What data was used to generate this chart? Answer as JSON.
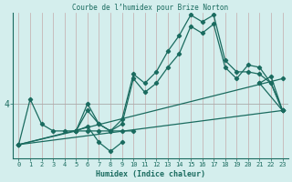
{
  "title": "Courbe de l’humidex pour Brize Norton",
  "xlabel": "Humidex (Indice chaleur)",
  "background_color": "#d4eeed",
  "line_color": "#1a6b5f",
  "grid_color_v": "#c4aaaa",
  "grid_color_h": "#aaaaaa",
  "ytick_label": "4",
  "ytick_val": 4.0,
  "xlim": [
    -0.5,
    23.5
  ],
  "ylim": [
    2.8,
    6.0
  ],
  "xticks": [
    0,
    1,
    2,
    3,
    4,
    5,
    6,
    7,
    8,
    9,
    10,
    11,
    12,
    13,
    14,
    15,
    16,
    17,
    18,
    19,
    20,
    21,
    22,
    23
  ],
  "series": [
    {
      "x": [
        0,
        1,
        2,
        3,
        4,
        5,
        6,
        7,
        8,
        9,
        10
      ],
      "y": [
        3.1,
        4.1,
        3.55,
        3.4,
        3.4,
        3.4,
        3.4,
        3.4,
        3.4,
        3.4,
        3.4
      ]
    },
    {
      "x": [
        0,
        5,
        6,
        7,
        8,
        9,
        10,
        11,
        12,
        13,
        14,
        15,
        16,
        17,
        18,
        19,
        20,
        21,
        22,
        23
      ],
      "y": [
        3.1,
        3.4,
        3.85,
        3.55,
        3.4,
        3.55,
        4.55,
        4.25,
        4.45,
        4.8,
        5.1,
        5.7,
        5.55,
        5.75,
        4.8,
        4.55,
        4.85,
        4.8,
        4.45,
        3.85
      ]
    },
    {
      "x": [
        5,
        6,
        7,
        8,
        9,
        10,
        11,
        12,
        13,
        14,
        15,
        16,
        17,
        18,
        19,
        20,
        21,
        22,
        23
      ],
      "y": [
        3.4,
        4.0,
        3.55,
        3.4,
        3.65,
        4.65,
        4.45,
        4.7,
        5.15,
        5.5,
        5.95,
        5.8,
        5.95,
        4.95,
        4.7,
        4.7,
        4.65,
        4.45,
        3.85
      ]
    },
    {
      "x": [
        0,
        23
      ],
      "y": [
        3.1,
        4.55
      ]
    },
    {
      "x": [
        0,
        23
      ],
      "y": [
        3.1,
        3.85
      ]
    },
    {
      "x": [
        5,
        6,
        7,
        8,
        9
      ],
      "y": [
        3.4,
        3.5,
        3.15,
        2.95,
        3.15
      ]
    },
    {
      "x": [
        21,
        22,
        23,
        21
      ],
      "y": [
        4.45,
        4.6,
        3.85,
        4.45
      ]
    }
  ]
}
